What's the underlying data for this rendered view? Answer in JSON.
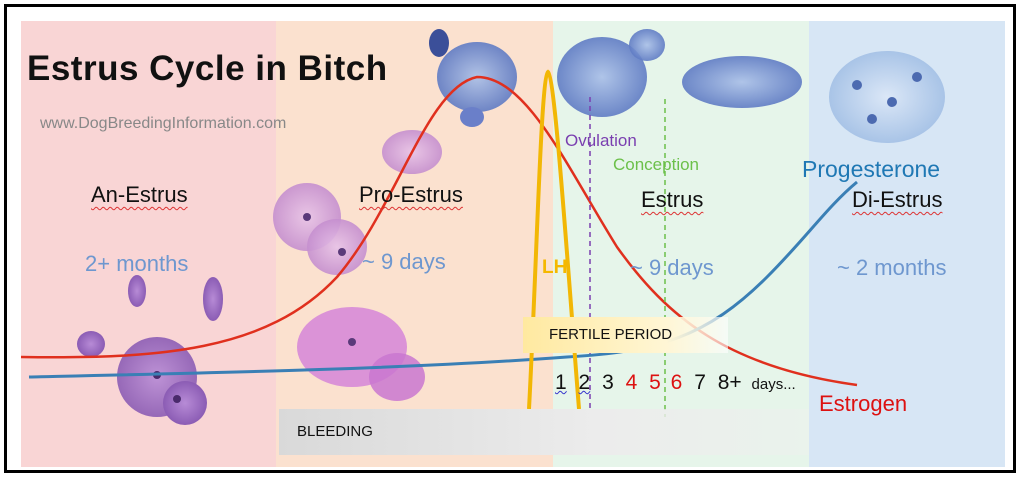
{
  "title": "Estrus Cycle in Bitch",
  "website": "www.DogBreedingInformation.com",
  "phases": [
    {
      "name": "An-Estrus",
      "duration": "2+ months"
    },
    {
      "name": "Pro-Estrus",
      "duration": "~ 9 days"
    },
    {
      "name": "Estrus",
      "duration": "~ 9 days"
    },
    {
      "name": "Di-Estrus",
      "duration": "~ 2 months"
    }
  ],
  "labels": {
    "ovulation": "Ovulation",
    "conception": "Conception",
    "progesterone": "Progesterone",
    "estrogen": "Estrogen",
    "lh": "LH",
    "fertile_period": "FERTILE PERIOD",
    "bleeding": "BLEEDING"
  },
  "days": [
    "1",
    "2",
    "3",
    "4",
    "5",
    "6",
    "7",
    "8+",
    "days..."
  ],
  "colors": {
    "anestrus": "#f9d5d5",
    "proestrus": "#fbe1cf",
    "estrus": "#e6f5ea",
    "diestrus": "#d7e6f5",
    "estrogen_curve": "#e0301e",
    "progesterone_curve": "#3a7fb5",
    "lh_curve": "#f2b705",
    "ovulation_line": "#7a3fb0",
    "conception_line": "#6cc04a"
  }
}
